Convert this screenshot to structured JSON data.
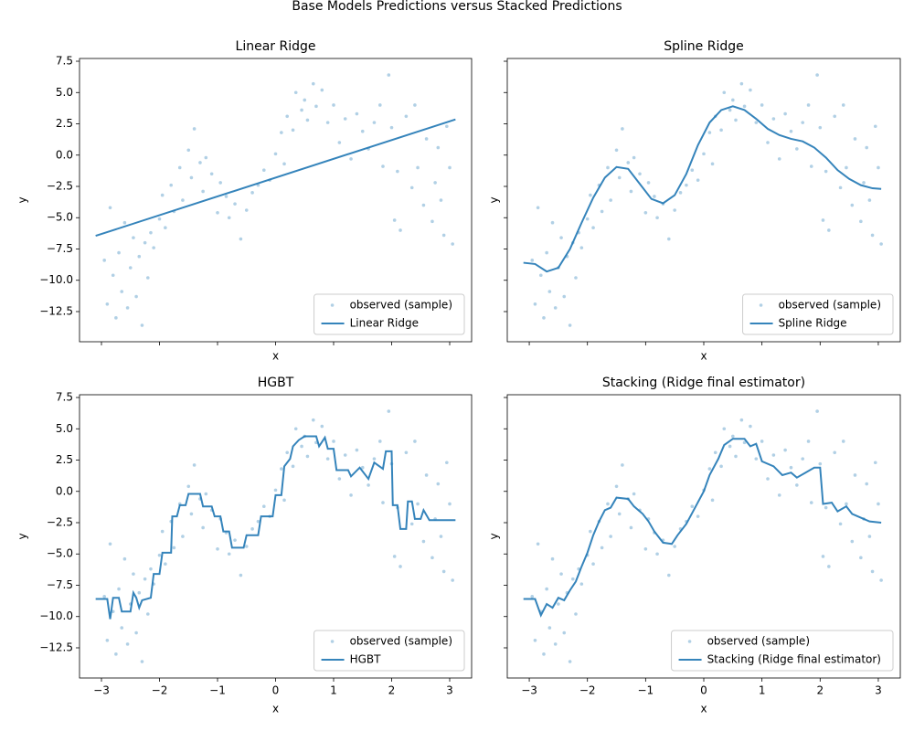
{
  "title": "Base Models Predictions versus Stacked Predictions",
  "sample": {
    "type": "scatter",
    "name": "observed (sample)",
    "color": "#1f77b4",
    "x": [
      -2.95,
      -2.9,
      -2.85,
      -2.8,
      -2.75,
      -2.7,
      -2.65,
      -2.6,
      -2.55,
      -2.5,
      -2.45,
      -2.4,
      -2.35,
      -2.3,
      -2.25,
      -2.2,
      -2.15,
      -2.1,
      -2.0,
      -1.95,
      -1.9,
      -1.8,
      -1.75,
      -1.65,
      -1.6,
      -1.5,
      -1.45,
      -1.4,
      -1.3,
      -1.25,
      -1.2,
      -1.1,
      -1.0,
      -0.95,
      -0.85,
      -0.8,
      -0.7,
      -0.6,
      -0.5,
      -0.4,
      -0.3,
      -0.2,
      -0.1,
      0.0,
      0.1,
      0.15,
      0.2,
      0.3,
      0.35,
      0.45,
      0.5,
      0.55,
      0.65,
      0.7,
      0.8,
      0.9,
      1.0,
      1.1,
      1.2,
      1.3,
      1.4,
      1.5,
      1.6,
      1.7,
      1.8,
      1.85,
      1.95,
      2.0,
      2.05,
      2.1,
      2.15,
      2.25,
      2.35,
      2.4,
      2.45,
      2.55,
      2.6,
      2.7,
      2.75,
      2.8,
      2.85,
      2.9,
      2.95,
      3.0,
      3.05
    ],
    "y": [
      -8.4,
      -11.9,
      -4.2,
      -9.6,
      -13.0,
      -7.8,
      -10.9,
      -5.4,
      -12.2,
      -9.0,
      -6.6,
      -11.3,
      -8.1,
      -13.6,
      -7.0,
      -9.8,
      -6.2,
      -7.4,
      -5.1,
      -3.2,
      -5.8,
      -2.4,
      -4.5,
      -1.0,
      -3.6,
      0.4,
      -1.8,
      2.1,
      -0.6,
      -2.9,
      -0.2,
      -1.5,
      -4.6,
      -2.2,
      -3.3,
      -5.0,
      -3.9,
      -6.7,
      -4.4,
      -3.0,
      -2.4,
      -1.2,
      -2.0,
      0.1,
      1.8,
      -0.7,
      3.1,
      2.0,
      5.0,
      3.6,
      4.4,
      2.8,
      5.7,
      3.9,
      5.2,
      2.6,
      4.0,
      1.0,
      2.9,
      -0.3,
      3.3,
      1.9,
      0.5,
      2.6,
      4.0,
      -0.9,
      6.4,
      2.2,
      -5.2,
      -1.3,
      -6.0,
      3.1,
      -2.6,
      4.0,
      -1.0,
      -4.0,
      1.3,
      -5.3,
      -2.2,
      0.6,
      -3.6,
      -6.4,
      2.3,
      -1.0,
      -7.1
    ]
  },
  "chart_data": [
    {
      "type": "line",
      "title": "Linear Ridge",
      "xlabel": "x",
      "ylabel": "y",
      "legend": "lower right",
      "xlim": [
        -3.378,
        3.378
      ],
      "ylim": [
        -14.91,
        7.72
      ],
      "xticks": [
        -3,
        -2,
        -1,
        0,
        1,
        2,
        3
      ],
      "xtick_labels": false,
      "yticks": [
        {
          "value": -12.5,
          "label": "−12.5"
        },
        {
          "value": -10,
          "label": "−10.0"
        },
        {
          "value": -7.5,
          "label": "−7.5"
        },
        {
          "value": -5,
          "label": "−5.0"
        },
        {
          "value": -2.5,
          "label": "−2.5"
        },
        {
          "value": 0,
          "label": "0.0"
        },
        2.5,
        {
          "value": 5,
          "label": "5.0"
        },
        7.5
      ],
      "ytick_labels": true,
      "series": [
        {
          "name": "Linear Ridge",
          "color": "#1f77b4",
          "x": [
            -3.1,
            3.1
          ],
          "values": [
            -6.45,
            2.85
          ]
        }
      ]
    },
    {
      "type": "line",
      "title": "Spline Ridge",
      "xlabel": "x",
      "ylabel": "y",
      "legend": "lower right",
      "xlim": [
        -3.378,
        3.378
      ],
      "ylim": [
        -14.91,
        7.72
      ],
      "xticks": [
        -3,
        -2,
        -1,
        0,
        1,
        2,
        3
      ],
      "xtick_labels": false,
      "yticks": [
        -12.5,
        -10,
        -7.5,
        -5,
        -2.5,
        0,
        2.5,
        5,
        7.5
      ],
      "ytick_labels": false,
      "series": [
        {
          "name": "Spline Ridge",
          "color": "#1f77b4",
          "x": [
            -3.1,
            -2.9,
            -2.7,
            -2.5,
            -2.3,
            -2.1,
            -1.9,
            -1.7,
            -1.5,
            -1.3,
            -1.1,
            -0.9,
            -0.7,
            -0.5,
            -0.3,
            -0.1,
            0.1,
            0.3,
            0.5,
            0.7,
            0.9,
            1.1,
            1.3,
            1.5,
            1.7,
            1.9,
            2.1,
            2.3,
            2.5,
            2.7,
            2.9,
            3.05
          ],
          "values": [
            -8.6,
            -8.7,
            -9.3,
            -9.0,
            -7.5,
            -5.4,
            -3.4,
            -1.8,
            -0.95,
            -1.1,
            -2.3,
            -3.5,
            -3.85,
            -3.2,
            -1.5,
            0.8,
            2.6,
            3.6,
            3.9,
            3.6,
            2.9,
            2.1,
            1.6,
            1.3,
            1.1,
            0.6,
            -0.2,
            -1.2,
            -1.9,
            -2.4,
            -2.65,
            -2.7
          ]
        }
      ]
    },
    {
      "type": "line",
      "title": "HGBT",
      "xlabel": "x",
      "ylabel": "y",
      "legend": "lower right",
      "xlim": [
        -3.378,
        3.378
      ],
      "ylim": [
        -14.91,
        7.72
      ],
      "xticks": [
        {
          "value": -3,
          "label": "−3"
        },
        {
          "value": -2,
          "label": "−2"
        },
        {
          "value": -1,
          "label": "−1"
        },
        0,
        1,
        2,
        3
      ],
      "xtick_labels": true,
      "yticks": [
        {
          "value": -12.5,
          "label": "−12.5"
        },
        {
          "value": -10,
          "label": "−10.0"
        },
        {
          "value": -7.5,
          "label": "−7.5"
        },
        {
          "value": -5,
          "label": "−5.0"
        },
        {
          "value": -2.5,
          "label": "−2.5"
        },
        {
          "value": 0,
          "label": "0.0"
        },
        2.5,
        {
          "value": 5,
          "label": "5.0"
        },
        7.5
      ],
      "ytick_labels": true,
      "series": [
        {
          "name": "HGBT",
          "color": "#1f77b4",
          "x": [
            -3.1,
            -2.9,
            -2.85,
            -2.8,
            -2.7,
            -2.65,
            -2.5,
            -2.45,
            -2.4,
            -2.35,
            -2.3,
            -2.15,
            -2.1,
            -2.0,
            -1.95,
            -1.8,
            -1.78,
            -1.7,
            -1.65,
            -1.55,
            -1.5,
            -1.3,
            -1.25,
            -1.1,
            -1.05,
            -0.95,
            -0.9,
            -0.8,
            -0.75,
            -0.55,
            -0.5,
            -0.3,
            -0.25,
            -0.05,
            0.0,
            0.1,
            0.15,
            0.25,
            0.3,
            0.4,
            0.5,
            0.7,
            0.75,
            0.85,
            0.9,
            1.0,
            1.05,
            1.25,
            1.3,
            1.45,
            1.6,
            1.7,
            1.85,
            1.9,
            2.0,
            2.02,
            2.1,
            2.15,
            2.25,
            2.28,
            2.35,
            2.4,
            2.5,
            2.55,
            2.65,
            3.1
          ],
          "values": [
            -8.6,
            -8.6,
            -10.2,
            -8.5,
            -8.5,
            -9.6,
            -9.6,
            -8.1,
            -8.5,
            -9.3,
            -8.7,
            -8.5,
            -6.6,
            -6.6,
            -4.9,
            -4.9,
            -2.0,
            -2.0,
            -1.1,
            -1.1,
            -0.2,
            -0.2,
            -1.2,
            -1.2,
            -2.0,
            -2.0,
            -3.2,
            -3.2,
            -4.5,
            -4.5,
            -3.5,
            -3.5,
            -2.0,
            -2.0,
            -0.3,
            -0.3,
            2.0,
            2.6,
            3.6,
            4.1,
            4.4,
            4.4,
            3.6,
            4.3,
            3.4,
            3.4,
            1.7,
            1.7,
            1.2,
            1.9,
            1.0,
            2.3,
            1.8,
            3.2,
            3.2,
            -1.1,
            -1.1,
            -3.0,
            -3.0,
            -0.8,
            -0.8,
            -2.2,
            -2.2,
            -1.5,
            -2.3,
            -2.3
          ]
        }
      ]
    },
    {
      "type": "line",
      "title": "Stacking (Ridge final estimator)",
      "xlabel": "x",
      "ylabel": "y",
      "legend": "lower right",
      "xlim": [
        -3.378,
        3.378
      ],
      "ylim": [
        -14.91,
        7.72
      ],
      "xticks": [
        {
          "value": -3,
          "label": "−3"
        },
        {
          "value": -2,
          "label": "−2"
        },
        {
          "value": -1,
          "label": "−1"
        },
        0,
        1,
        2,
        3
      ],
      "xtick_labels": true,
      "yticks": [
        -12.5,
        -10,
        -7.5,
        -5,
        -2.5,
        0,
        2.5,
        5,
        7.5
      ],
      "ytick_labels": false,
      "series": [
        {
          "name": "Stacking (Ridge final estimator)",
          "color": "#1f77b4",
          "x": [
            -3.1,
            -2.9,
            -2.8,
            -2.7,
            -2.6,
            -2.5,
            -2.4,
            -2.3,
            -2.2,
            -2.1,
            -2.0,
            -1.9,
            -1.8,
            -1.7,
            -1.6,
            -1.5,
            -1.3,
            -1.2,
            -1.05,
            -0.95,
            -0.85,
            -0.7,
            -0.55,
            -0.45,
            -0.3,
            -0.15,
            0.0,
            0.1,
            0.25,
            0.35,
            0.5,
            0.7,
            0.8,
            0.9,
            1.0,
            1.2,
            1.35,
            1.5,
            1.6,
            1.75,
            1.9,
            2.0,
            2.05,
            2.2,
            2.3,
            2.45,
            2.55,
            2.7,
            2.85,
            3.05
          ],
          "values": [
            -8.6,
            -8.6,
            -9.9,
            -9.0,
            -9.3,
            -8.5,
            -8.7,
            -7.9,
            -7.2,
            -6.0,
            -4.9,
            -3.5,
            -2.4,
            -1.5,
            -1.3,
            -0.5,
            -0.6,
            -1.2,
            -1.8,
            -2.4,
            -3.2,
            -4.1,
            -4.2,
            -3.5,
            -2.6,
            -1.3,
            0.0,
            1.3,
            2.6,
            3.7,
            4.2,
            4.2,
            3.6,
            3.8,
            2.4,
            2.0,
            1.3,
            1.5,
            1.1,
            1.5,
            1.9,
            1.9,
            -1.0,
            -0.9,
            -1.6,
            -1.2,
            -1.8,
            -2.1,
            -2.4,
            -2.5
          ]
        }
      ]
    }
  ]
}
